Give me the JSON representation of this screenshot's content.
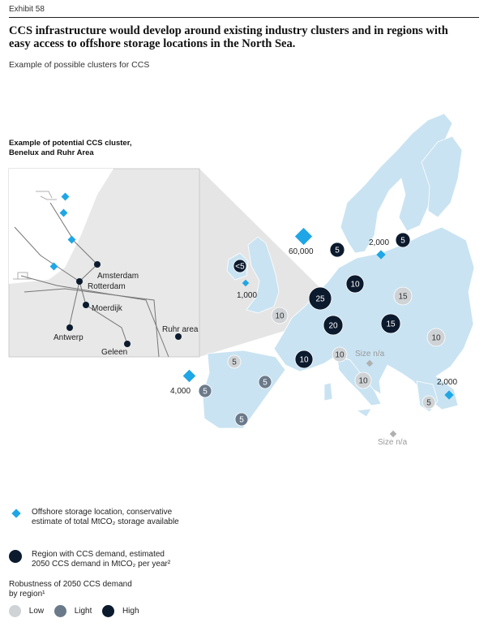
{
  "header": {
    "exhibit": "Exhibit 58",
    "title_line1": "CCS infrastructure would develop around existing industry clusters and in regions with",
    "title_line2": "easy access to offshore storage locations in the North Sea.",
    "subtitle": "Example of possible clusters for CCS"
  },
  "inset": {
    "title_line1": "Example of potential CCS cluster,",
    "title_line2": "Benelux and Ruhr Area",
    "places": [
      "Amsterdam",
      "Rotterdam",
      "Moerdijk",
      "Antwerp",
      "Geleen",
      "Ruhr area"
    ]
  },
  "storage": [
    {
      "id": "norway",
      "label": "60,000"
    },
    {
      "id": "baltic",
      "label": "2,000"
    },
    {
      "id": "uk",
      "label": "1,000"
    },
    {
      "id": "spain",
      "label": "4,000"
    },
    {
      "id": "greece",
      "label": "2,000"
    },
    {
      "id": "italy",
      "label": "Size n/a"
    },
    {
      "id": "med",
      "label": "Size n/a"
    }
  ],
  "demand": [
    {
      "id": "scandinavia",
      "value": "5",
      "robustness": "high"
    },
    {
      "id": "poland-north",
      "value": "5",
      "robustness": "high"
    },
    {
      "id": "ireland",
      "value": "<5",
      "robustness": "high"
    },
    {
      "id": "benelux",
      "value": "25",
      "robustness": "high"
    },
    {
      "id": "germany-north",
      "value": "10",
      "robustness": "high"
    },
    {
      "id": "germany-south",
      "value": "20",
      "robustness": "high"
    },
    {
      "id": "czech-poland",
      "value": "15",
      "robustness": "high"
    },
    {
      "id": "poland-east",
      "value": "15",
      "robustness": "low"
    },
    {
      "id": "france-north",
      "value": "10",
      "robustness": "low"
    },
    {
      "id": "france-south",
      "value": "10",
      "robustness": "high"
    },
    {
      "id": "alps",
      "value": "10",
      "robustness": "low"
    },
    {
      "id": "italy",
      "value": "10",
      "robustness": "low"
    },
    {
      "id": "balkans",
      "value": "10",
      "robustness": "low"
    },
    {
      "id": "spain-north",
      "value": "5",
      "robustness": "low"
    },
    {
      "id": "spain-central",
      "value": "5",
      "robustness": "light"
    },
    {
      "id": "portugal",
      "value": "5",
      "robustness": "light"
    },
    {
      "id": "spain-south",
      "value": "5",
      "robustness": "light"
    },
    {
      "id": "greece",
      "value": "5",
      "robustness": "low"
    }
  ],
  "legend": {
    "storage_line1": "Offshore storage location, conservative",
    "storage_line2": "estimate of total MtCO₂ storage available",
    "demand_line1": "Region with CCS demand, estimated",
    "demand_line2": "2050 CCS demand in MtCO₂ per year²",
    "robustness_line1": "Robustness of 2050 CCS demand",
    "robustness_line2": "by region¹",
    "low": "Low",
    "light": "Light",
    "high": "High"
  },
  "colors": {
    "land": "#c9e3f2",
    "inset_land": "#e8e8e8",
    "storage": "#1fa6e6",
    "high": "#0c1a2e",
    "light": "#6b7a8a",
    "low": "#cfd3d6",
    "na": "#b0b0b0"
  }
}
